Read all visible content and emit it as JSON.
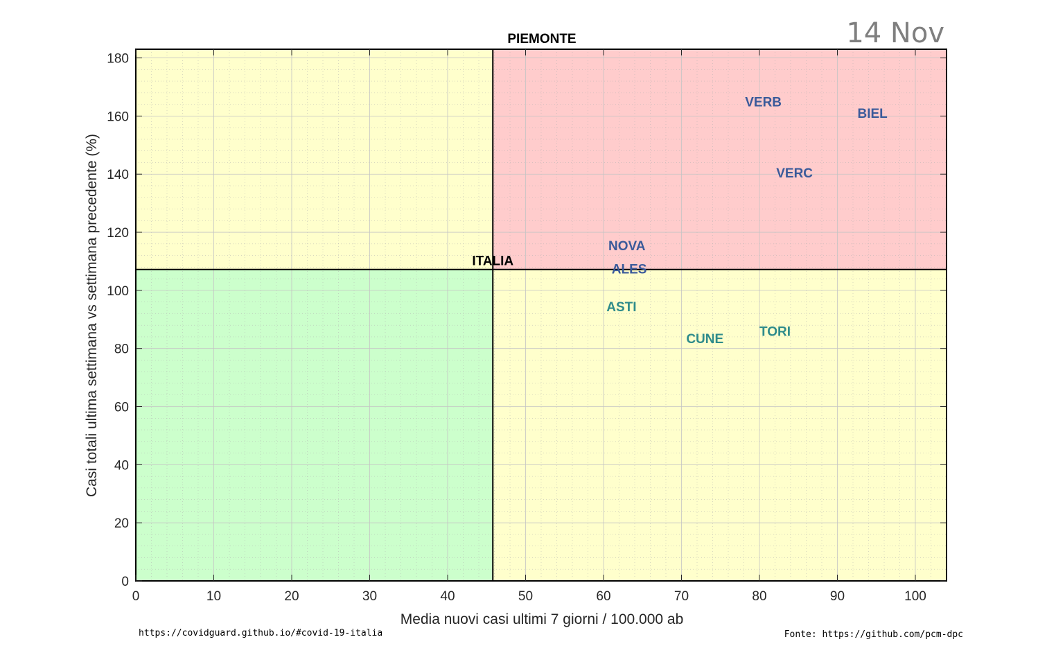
{
  "date_label": "14 Nov",
  "footer": {
    "left": "https://covidguard.github.io/#covid-19-italia",
    "right": "Fonte: https://github.com/pcm-dpc"
  },
  "colors": {
    "red_zone": "#ffcccc",
    "yellow_zone": "#ffffcc",
    "green_zone": "#ccffcc",
    "label_above": "#3a5a9a",
    "label_below": "#2e8b8b"
  },
  "chart_data": {
    "type": "scatter",
    "title": "PIEMONTE",
    "xlabel": "Media nuovi casi ultimi 7 giorni / 100.000 ab",
    "ylabel": "Casi totali ultima settimana vs settimana precedente (%)",
    "xlim": [
      0,
      104
    ],
    "ylim": [
      0,
      183
    ],
    "xticks": [
      0,
      10,
      20,
      30,
      40,
      50,
      60,
      70,
      80,
      90,
      100
    ],
    "yticks": [
      0,
      20,
      40,
      60,
      80,
      100,
      120,
      140,
      160,
      180
    ],
    "grid": true,
    "reference": {
      "label": "ITALIA",
      "x": 45.8,
      "y": 107.2
    },
    "points": [
      {
        "label": "VERB",
        "x": 80.5,
        "y": 165
      },
      {
        "label": "BIEL",
        "x": 94.5,
        "y": 161
      },
      {
        "label": "VERC",
        "x": 84.5,
        "y": 140.5
      },
      {
        "label": "NOVA",
        "x": 63.0,
        "y": 115.5
      },
      {
        "label": "ALES",
        "x": 63.3,
        "y": 107.5
      },
      {
        "label": "ASTI",
        "x": 62.3,
        "y": 94.5
      },
      {
        "label": "CUNE",
        "x": 73.0,
        "y": 83.5
      },
      {
        "label": "TORI",
        "x": 82.0,
        "y": 86
      }
    ]
  }
}
